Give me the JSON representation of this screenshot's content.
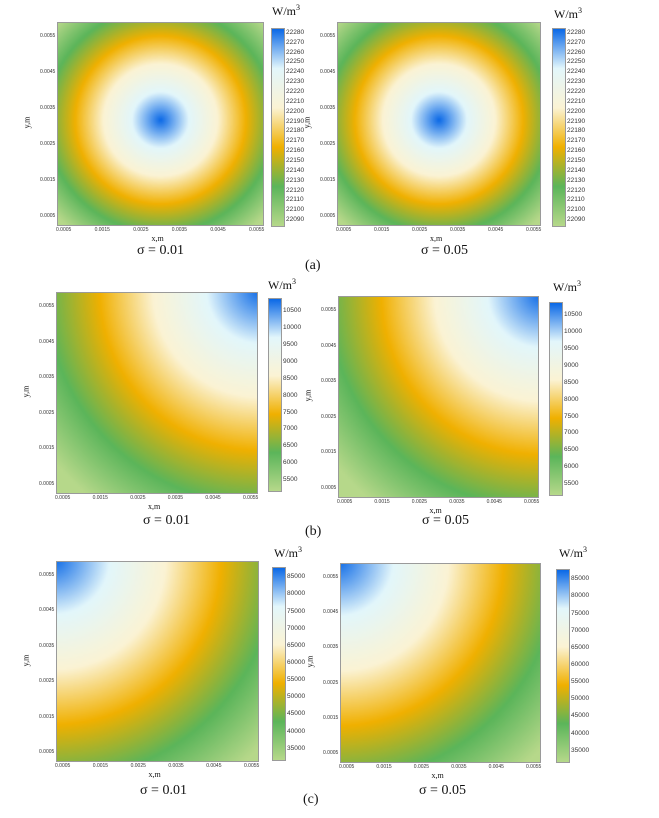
{
  "colors": {
    "scale": [
      "#b6d88a",
      "#5bb55a",
      "#f0b000",
      "#fbf3d4",
      "#e2f6fb",
      "#0a68e6"
    ]
  },
  "chart_data": [
    {
      "id": "a1",
      "type": "heatmap",
      "pattern": "center",
      "row": "(a)",
      "sigma_label": "σ = 0.01",
      "unit_base": "W/m",
      "unit_exp": "3",
      "xlabel": "x,m",
      "ylabel": "y,m",
      "x_ticks": [
        "0.0005",
        "0.0015",
        "0.0025",
        "0.0035",
        "0.0045",
        "0.0055"
      ],
      "y_ticks": [
        "0.0005",
        "0.0015",
        "0.0025",
        "0.0035",
        "0.0045",
        "0.0055"
      ],
      "colorbar_ticks": [
        22280,
        22270,
        22260,
        22250,
        22240,
        22230,
        22220,
        22210,
        22200,
        22190,
        22180,
        22170,
        22160,
        22150,
        22140,
        22130,
        22120,
        22110,
        22100,
        22090
      ],
      "zlim": [
        22085,
        22285
      ]
    },
    {
      "id": "a2",
      "type": "heatmap",
      "pattern": "center",
      "row": "(a)",
      "sigma_label": "σ = 0.05",
      "unit_base": "W/m",
      "unit_exp": "3",
      "xlabel": "x,m",
      "ylabel": "y,m",
      "x_ticks": [
        "0.0005",
        "0.0015",
        "0.0025",
        "0.0035",
        "0.0045",
        "0.0055"
      ],
      "y_ticks": [
        "0.0005",
        "0.0015",
        "0.0025",
        "0.0035",
        "0.0045",
        "0.0055"
      ],
      "colorbar_ticks": [
        22280,
        22270,
        22260,
        22250,
        22240,
        22230,
        22220,
        22210,
        22200,
        22190,
        22180,
        22170,
        22160,
        22150,
        22140,
        22130,
        22120,
        22110,
        22100,
        22090
      ],
      "zlim": [
        22085,
        22285
      ]
    },
    {
      "id": "b1",
      "type": "heatmap",
      "pattern": "top-right",
      "row": "(b)",
      "sigma_label": "σ = 0.01",
      "unit_base": "W/m",
      "unit_exp": "3",
      "xlabel": "x,m",
      "ylabel": "y,m",
      "x_ticks": [
        "0.0005",
        "0.0015",
        "0.0025",
        "0.0035",
        "0.0045",
        "0.0055"
      ],
      "y_ticks": [
        "0.0005",
        "0.0015",
        "0.0025",
        "0.0035",
        "0.0045",
        "0.0055"
      ],
      "colorbar_ticks": [
        10500,
        10000,
        9500,
        9000,
        8500,
        8000,
        7500,
        7000,
        6500,
        6000,
        5500
      ],
      "zlim": [
        5200,
        10900
      ]
    },
    {
      "id": "b2",
      "type": "heatmap",
      "pattern": "top-right",
      "row": "(b)",
      "sigma_label": "σ = 0.05",
      "unit_base": "W/m",
      "unit_exp": "3",
      "xlabel": "x,m",
      "ylabel": "y,m",
      "x_ticks": [
        "0.0005",
        "0.0015",
        "0.0025",
        "0.0035",
        "0.0045",
        "0.0055"
      ],
      "y_ticks": [
        "0.0005",
        "0.0015",
        "0.0025",
        "0.0035",
        "0.0045",
        "0.0055"
      ],
      "colorbar_ticks": [
        10500,
        10000,
        9500,
        9000,
        8500,
        8000,
        7500,
        7000,
        6500,
        6000,
        5500
      ],
      "zlim": [
        5200,
        10900
      ]
    },
    {
      "id": "c1",
      "type": "heatmap",
      "pattern": "top-left",
      "row": "(c)",
      "sigma_label": "σ = 0.01",
      "unit_base": "W/m",
      "unit_exp": "3",
      "xlabel": "x,m",
      "ylabel": "y,m",
      "x_ticks": [
        "0.0005",
        "0.0015",
        "0.0025",
        "0.0035",
        "0.0045",
        "0.0055"
      ],
      "y_ticks": [
        "0.0005",
        "0.0015",
        "0.0025",
        "0.0035",
        "0.0045",
        "0.0055"
      ],
      "colorbar_ticks": [
        85000,
        80000,
        75000,
        70000,
        65000,
        60000,
        55000,
        50000,
        45000,
        40000,
        35000
      ],
      "zlim": [
        32000,
        88000
      ]
    },
    {
      "id": "c2",
      "type": "heatmap",
      "pattern": "top-left",
      "row": "(c)",
      "sigma_label": "σ = 0.05",
      "unit_base": "W/m",
      "unit_exp": "3",
      "xlabel": "x,m",
      "ylabel": "y,m",
      "x_ticks": [
        "0.0005",
        "0.0015",
        "0.0025",
        "0.0035",
        "0.0045",
        "0.0055"
      ],
      "y_ticks": [
        "0.0005",
        "0.0015",
        "0.0025",
        "0.0035",
        "0.0045",
        "0.0055"
      ],
      "colorbar_ticks": [
        85000,
        80000,
        75000,
        70000,
        65000,
        60000,
        55000,
        50000,
        45000,
        40000,
        35000
      ],
      "zlim": [
        32000,
        88000
      ]
    }
  ],
  "row_labels": {
    "a": "(a)",
    "b": "(b)",
    "c": "(c)"
  }
}
